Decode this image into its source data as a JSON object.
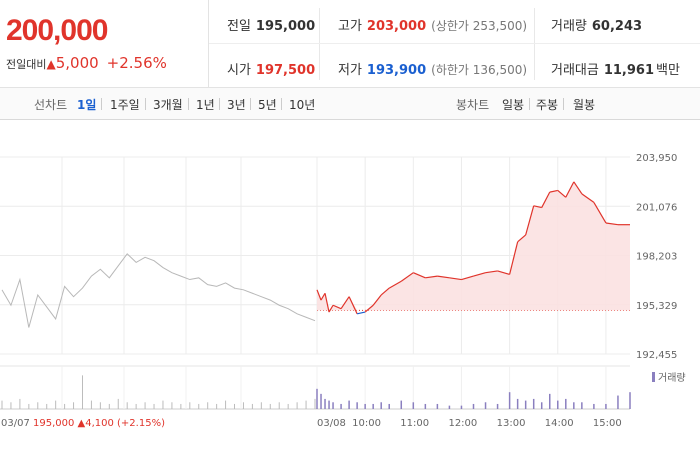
{
  "quote": {
    "price": "200,000",
    "change_label": "전일대비",
    "change_arrow": "▲",
    "change_amount": "5,000",
    "change_percent": "+2.56%"
  },
  "stats": {
    "prev_close": {
      "label": "전일",
      "value": "195,000"
    },
    "high": {
      "label": "고가",
      "value": "203,000",
      "sub": "(상한가 253,500)"
    },
    "volume": {
      "label": "거래량",
      "value": "60,243"
    },
    "open": {
      "label": "시가",
      "value": "197,500"
    },
    "low": {
      "label": "저가",
      "value": "193,900",
      "sub": "(하한가 136,500)"
    },
    "trade_value": {
      "label": "거래대금",
      "value": "11,961",
      "unit": "백만"
    }
  },
  "period_tabs": {
    "label": "선차트",
    "items": [
      "1일",
      "1주일",
      "3개월",
      "1년",
      "3년",
      "5년",
      "10년"
    ],
    "active": "1일"
  },
  "candle_tabs": {
    "label": "봉차트",
    "items": [
      "일봉",
      "주봉",
      "월봉"
    ]
  },
  "colors": {
    "up": "#e0342b",
    "down": "#1a5fd0",
    "prev_day_line": "#b8b8b8",
    "area_fill": "#fbe1e1"
  },
  "chart_data": {
    "type": "line",
    "y_ticks": [
      "203,950",
      "201,076",
      "198,203",
      "195,329",
      "192,455"
    ],
    "ylim": [
      192455,
      203950
    ],
    "baseline": 195000,
    "x_ticks": [
      "03/08",
      "10:00",
      "11:00",
      "12:00",
      "13:00",
      "14:00",
      "15:00"
    ],
    "volume_legend": "거래량",
    "prev_day_note": {
      "date": "03/07",
      "close": "195,000",
      "arrow": "▲",
      "change": "4,100",
      "pct": "(+2.15%)"
    },
    "prev_day_series": [
      196200,
      195300,
      196800,
      194000,
      195900,
      195200,
      194500,
      196400,
      195800,
      196300,
      197000,
      197400,
      196900,
      197600,
      198300,
      197800,
      198100,
      197900,
      197500,
      197200,
      197000,
      196800,
      196900,
      196500,
      196400,
      196600,
      196300,
      196200,
      196000,
      195800,
      195600,
      195300,
      195100,
      194800,
      194600,
      194400
    ],
    "today_times": [
      "09:00",
      "09:05",
      "09:10",
      "09:15",
      "09:20",
      "09:30",
      "09:40",
      "09:50",
      "10:00",
      "10:10",
      "10:20",
      "10:30",
      "10:45",
      "11:00",
      "11:15",
      "11:30",
      "11:45",
      "12:00",
      "12:15",
      "12:30",
      "12:45",
      "13:00",
      "13:10",
      "13:20",
      "13:30",
      "13:40",
      "13:50",
      "14:00",
      "14:10",
      "14:20",
      "14:30",
      "14:45",
      "15:00",
      "15:15",
      "15:30"
    ],
    "today_series": [
      196200,
      195600,
      196000,
      194900,
      195300,
      195100,
      195800,
      194800,
      194900,
      195300,
      195900,
      196300,
      196700,
      197200,
      196900,
      197000,
      196900,
      196800,
      197000,
      197200,
      197300,
      197100,
      199000,
      199400,
      201100,
      201000,
      201900,
      202000,
      201600,
      202500,
      201800,
      201300,
      200100,
      200000,
      200000
    ],
    "volume_today": [
      12,
      9,
      6,
      5,
      4,
      3,
      5,
      4,
      3,
      3,
      4,
      3,
      5,
      4,
      3,
      3,
      2,
      2,
      3,
      4,
      3,
      10,
      6,
      5,
      6,
      4,
      9,
      5,
      6,
      4,
      4,
      3,
      3,
      8,
      10
    ],
    "volume_prev": [
      5,
      4,
      6,
      3,
      4,
      3,
      5,
      3,
      4,
      20,
      5,
      4,
      3,
      6,
      4,
      3,
      4,
      3,
      5,
      4,
      3,
      4,
      3,
      4,
      3,
      5,
      3,
      4,
      3,
      4,
      3,
      4,
      3,
      4,
      5,
      6
    ]
  }
}
